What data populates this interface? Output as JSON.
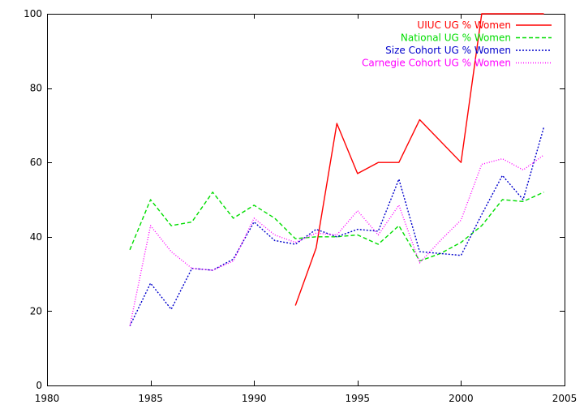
{
  "chart_data": {
    "type": "line",
    "title": "",
    "xlabel": "",
    "ylabel": "",
    "xlim": [
      1980,
      2005
    ],
    "ylim": [
      0,
      100
    ],
    "xticks": [
      1980,
      1985,
      1990,
      1995,
      2000,
      2005
    ],
    "yticks": [
      0,
      20,
      40,
      60,
      80,
      100
    ],
    "grid": false,
    "legend_position": "top-right",
    "series": [
      {
        "name": "UIUC UG % Women",
        "color": "#ff0000",
        "dash": "solid",
        "points": [
          [
            1992,
            21.5
          ],
          [
            1993,
            37
          ],
          [
            1994,
            70.5
          ],
          [
            1995,
            57
          ],
          [
            1996,
            60
          ],
          [
            1997,
            60
          ],
          [
            1998,
            71.5
          ],
          [
            2000,
            60
          ],
          [
            2001,
            100
          ],
          [
            2002,
            100
          ],
          [
            2003,
            100
          ],
          [
            2004,
            100
          ]
        ]
      },
      {
        "name": "National UG % Women",
        "color": "#00dd00",
        "dash": "dashed",
        "points": [
          [
            1984,
            36.5
          ],
          [
            1985,
            50
          ],
          [
            1986,
            43
          ],
          [
            1987,
            44
          ],
          [
            1988,
            52
          ],
          [
            1989,
            45
          ],
          [
            1990,
            48.5
          ],
          [
            1991,
            45
          ],
          [
            1992,
            39.5
          ],
          [
            1993,
            40
          ],
          [
            1994,
            40
          ],
          [
            1995,
            40.5
          ],
          [
            1996,
            38
          ],
          [
            1997,
            43
          ],
          [
            1998,
            33.5
          ],
          [
            1999,
            35.5
          ],
          [
            2000,
            38.5
          ],
          [
            2001,
            43
          ],
          [
            2002,
            50
          ],
          [
            2003,
            49.5
          ],
          [
            2004,
            52
          ]
        ]
      },
      {
        "name": "Size Cohort UG % Women",
        "color": "#0000cc",
        "dash": "dotted",
        "points": [
          [
            1984,
            16
          ],
          [
            1985,
            27.5
          ],
          [
            1986,
            20.5
          ],
          [
            1987,
            31.5
          ],
          [
            1988,
            31
          ],
          [
            1989,
            34
          ],
          [
            1990,
            44
          ],
          [
            1991,
            39
          ],
          [
            1992,
            38
          ],
          [
            1993,
            42
          ],
          [
            1994,
            40
          ],
          [
            1995,
            42
          ],
          [
            1996,
            41.5
          ],
          [
            1997,
            55.5
          ],
          [
            1998,
            36
          ],
          [
            1999,
            35.5
          ],
          [
            2000,
            35
          ],
          [
            2001,
            46
          ],
          [
            2002,
            56.5
          ],
          [
            2003,
            50
          ],
          [
            2004,
            69.5
          ]
        ]
      },
      {
        "name": "Carnegie Cohort UG % Women",
        "color": "#ff00ff",
        "dash": "fine-dotted",
        "points": [
          [
            1984,
            16
          ],
          [
            1985,
            43
          ],
          [
            1986,
            36
          ],
          [
            1987,
            31.5
          ],
          [
            1988,
            31
          ],
          [
            1989,
            33.5
          ],
          [
            1990,
            45
          ],
          [
            1991,
            40.5
          ],
          [
            1992,
            38.5
          ],
          [
            1993,
            41
          ],
          [
            1994,
            40.5
          ],
          [
            1995,
            47
          ],
          [
            1996,
            40.5
          ],
          [
            1997,
            48.5
          ],
          [
            1998,
            33
          ],
          [
            1999,
            39
          ],
          [
            2000,
            44.5
          ],
          [
            2001,
            59.5
          ],
          [
            2002,
            61
          ],
          [
            2003,
            58
          ],
          [
            2004,
            62
          ]
        ]
      }
    ]
  }
}
